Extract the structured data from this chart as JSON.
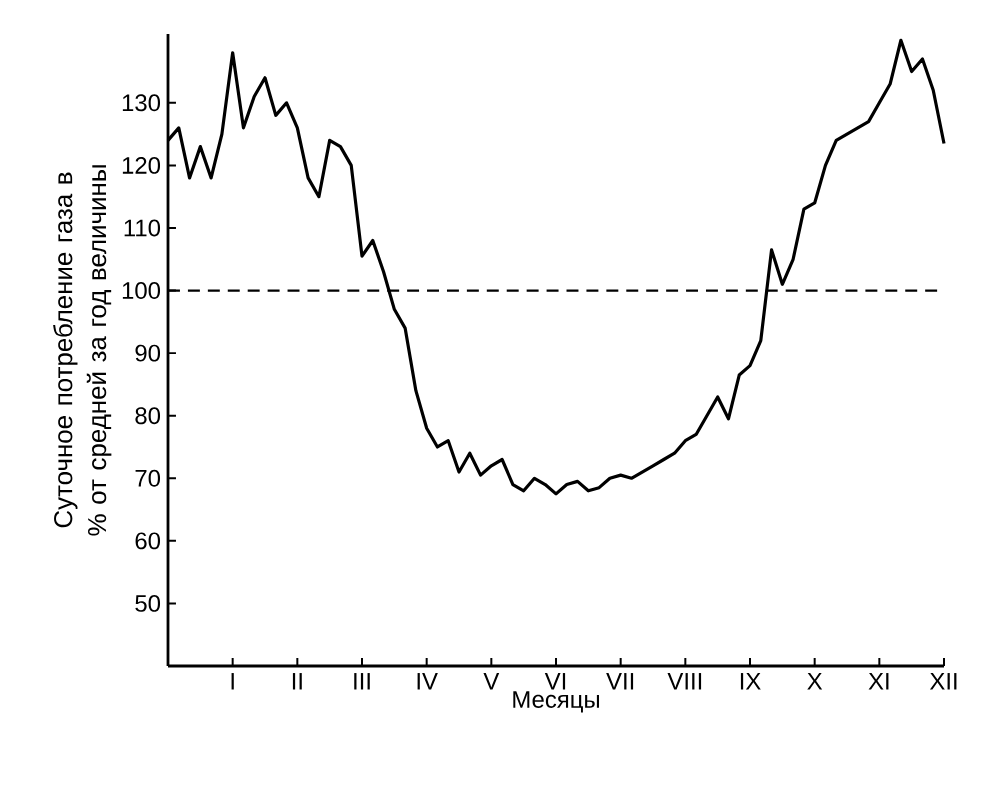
{
  "chart_data": {
    "type": "line",
    "xlabel": "Месяцы",
    "ylabel": "Суточное потребление газа в % от средней за год величины",
    "color": "#000000",
    "categories": [
      null,
      null,
      null,
      null,
      null,
      null,
      "I",
      null,
      null,
      null,
      null,
      null,
      "II",
      null,
      null,
      null,
      null,
      null,
      "III",
      null,
      null,
      null,
      null,
      null,
      "IV",
      null,
      null,
      null,
      null,
      null,
      "V",
      null,
      null,
      null,
      null,
      null,
      "VI",
      null,
      null,
      null,
      null,
      null,
      "VII",
      null,
      null,
      null,
      null,
      null,
      "VIII",
      null,
      null,
      null,
      null,
      null,
      "IX",
      null,
      null,
      null,
      null,
      null,
      "X",
      null,
      null,
      null,
      null,
      null,
      "XI",
      null,
      null,
      null,
      null,
      null,
      "XII"
    ],
    "values": [
      124,
      126,
      118,
      123,
      118,
      125,
      138,
      126,
      131,
      134,
      128,
      130,
      126,
      118,
      115,
      124,
      123,
      120,
      105.5,
      108,
      103,
      97,
      94,
      84,
      78,
      75,
      76,
      71,
      74,
      70.5,
      72,
      73,
      69,
      68,
      70,
      69,
      67.5,
      69,
      69.5,
      68,
      68.5,
      70,
      70.5,
      70,
      71,
      72,
      73,
      74,
      76,
      77,
      80,
      83,
      79.5,
      86.5,
      88,
      92,
      106.5,
      101,
      105,
      113,
      114,
      120,
      124,
      125,
      126,
      127,
      130,
      133,
      140,
      135,
      137,
      132,
      123.5
    ],
    "ylim": [
      40,
      141
    ],
    "yticks": [
      50,
      60,
      70,
      80,
      90,
      100,
      110,
      120,
      130
    ],
    "ref_lines": [
      {
        "axis": "y",
        "value": 100,
        "line_style": "dashed"
      }
    ]
  }
}
